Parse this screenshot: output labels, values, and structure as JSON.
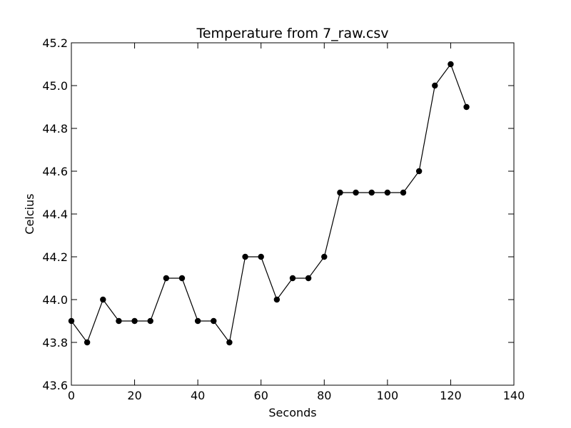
{
  "chart_data": {
    "type": "line",
    "title": "Temperature from 7_raw.csv",
    "xlabel": "Seconds",
    "ylabel": "Celcius",
    "xlim": [
      0,
      140
    ],
    "ylim": [
      43.6,
      45.2
    ],
    "xticks": [
      0,
      20,
      40,
      60,
      80,
      100,
      120,
      140
    ],
    "yticks": [
      43.6,
      43.8,
      44.0,
      44.2,
      44.4,
      44.6,
      44.8,
      45.0,
      45.2
    ],
    "xtick_labels": [
      "0",
      "20",
      "40",
      "60",
      "80",
      "100",
      "120",
      "140"
    ],
    "ytick_labels": [
      "43.6",
      "43.8",
      "44.0",
      "44.2",
      "44.4",
      "44.6",
      "44.8",
      "45.0",
      "45.2"
    ],
    "grid": false,
    "series": [
      {
        "color": "#000000",
        "marker": "circle",
        "x": [
          0,
          5,
          10,
          15,
          20,
          25,
          30,
          35,
          40,
          45,
          50,
          55,
          60,
          65,
          70,
          75,
          80,
          85,
          90,
          95,
          100,
          105,
          110,
          115,
          120,
          125
        ],
        "y": [
          43.9,
          43.8,
          44.0,
          43.9,
          43.9,
          43.9,
          44.1,
          44.1,
          43.9,
          43.9,
          43.8,
          44.2,
          44.2,
          44.0,
          44.1,
          44.1,
          44.2,
          44.5,
          44.5,
          44.5,
          44.5,
          44.5,
          44.6,
          45.0,
          45.1,
          44.9
        ]
      }
    ]
  }
}
